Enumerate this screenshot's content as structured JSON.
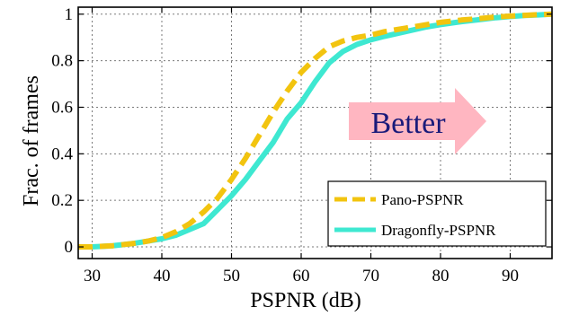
{
  "chart_data": {
    "type": "line",
    "title": "",
    "xlabel": "PSPNR (dB)",
    "ylabel": "Frac. of frames",
    "xlim": [
      28,
      96
    ],
    "ylim": [
      -0.05,
      1.03
    ],
    "x_ticks": [
      30,
      40,
      50,
      60,
      70,
      80,
      90
    ],
    "y_ticks": [
      0,
      0.2,
      0.4,
      0.6,
      0.8,
      1
    ],
    "x_tick_labels": [
      "30",
      "40",
      "50",
      "60",
      "70",
      "80",
      "90"
    ],
    "y_tick_labels": [
      "0",
      "0.2",
      "0.4",
      "0.6",
      "0.8",
      "1"
    ],
    "grid": true,
    "legend_position": "bottom-right",
    "annotation": {
      "text": "Better",
      "arrow_direction": "right",
      "arrow_color": "#ffb6c1",
      "text_color": "#1a1a7a"
    },
    "series": [
      {
        "name": "Pano-PSPNR",
        "color": "#f2c40f",
        "dash": "dashed",
        "x": [
          28,
          30,
          33,
          36,
          38,
          40,
          42,
          44,
          46,
          48,
          50,
          52,
          54,
          56,
          58,
          60,
          62,
          64,
          66,
          68,
          70,
          72,
          75,
          78,
          80,
          83,
          86,
          88,
          90,
          92,
          94,
          96
        ],
        "y": [
          0.0,
          0.0,
          0.005,
          0.015,
          0.025,
          0.04,
          0.065,
          0.1,
          0.15,
          0.21,
          0.29,
          0.38,
          0.48,
          0.58,
          0.67,
          0.75,
          0.81,
          0.86,
          0.885,
          0.9,
          0.91,
          0.925,
          0.94,
          0.955,
          0.965,
          0.975,
          0.982,
          0.988,
          0.992,
          0.995,
          0.998,
          1.0
        ]
      },
      {
        "name": "Dragonfly-PSPNR",
        "color": "#3ee8d1",
        "dash": "solid",
        "x": [
          28,
          30,
          33,
          36,
          38,
          40,
          42,
          44,
          46,
          48,
          50,
          52,
          54,
          56,
          58,
          60,
          62,
          64,
          66,
          68,
          70,
          72,
          75,
          78,
          80,
          83,
          86,
          88,
          90,
          92,
          94,
          96
        ],
        "y": [
          0.0,
          0.0,
          0.005,
          0.015,
          0.025,
          0.035,
          0.05,
          0.075,
          0.1,
          0.16,
          0.22,
          0.29,
          0.37,
          0.45,
          0.55,
          0.62,
          0.71,
          0.79,
          0.84,
          0.87,
          0.89,
          0.905,
          0.925,
          0.945,
          0.955,
          0.968,
          0.978,
          0.985,
          0.99,
          0.994,
          0.997,
          1.0
        ]
      }
    ]
  }
}
